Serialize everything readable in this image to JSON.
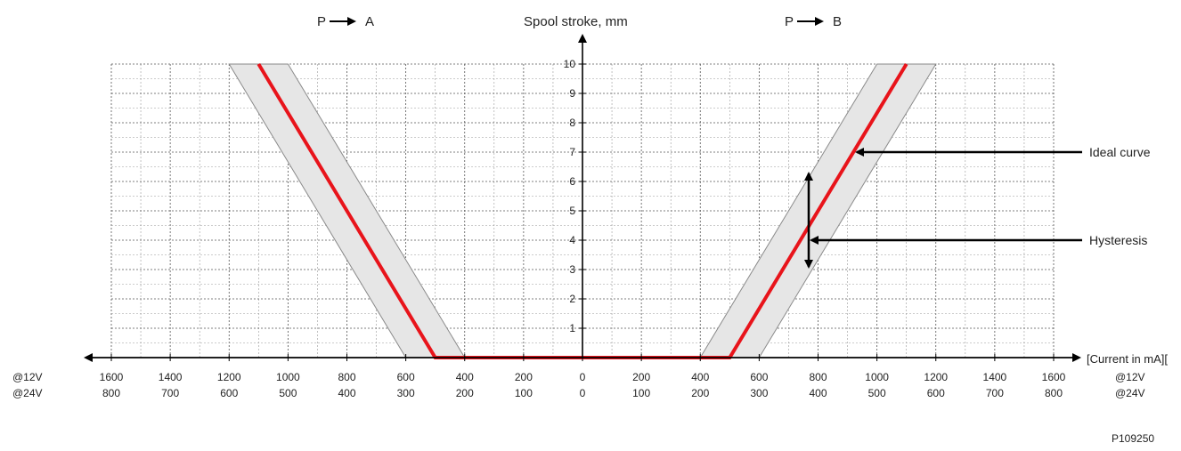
{
  "header": {
    "left_direction": "P",
    "left_target": "A",
    "right_direction": "P",
    "right_target": "B",
    "y_axis_label": "Spool stroke, mm"
  },
  "axis": {
    "x_label": "[Current in mA][",
    "row_label_12v": "@12V",
    "row_label_24v": "@24V",
    "figure_code": "P109250"
  },
  "annotations": {
    "ideal_curve": "Ideal curve",
    "hysteresis": "Hysteresis"
  },
  "chart_data": {
    "type": "line",
    "xlabel": "[Current in mA][",
    "ylabel": "Spool stroke, mm",
    "x_ticks_12v": [
      "1600",
      "1400",
      "1200",
      "1000",
      "800",
      "600",
      "400",
      "200",
      "0",
      "200",
      "400",
      "600",
      "800",
      "1000",
      "1200",
      "1400",
      "1600"
    ],
    "x_ticks_24v": [
      "800",
      "700",
      "600",
      "500",
      "400",
      "300",
      "200",
      "100",
      "0",
      "100",
      "200",
      "300",
      "400",
      "500",
      "600",
      "700",
      "800"
    ],
    "x_values_signed": [
      -1600,
      -1400,
      -1200,
      -1000,
      -800,
      -600,
      -400,
      -200,
      0,
      200,
      400,
      600,
      800,
      1000,
      1200,
      1400,
      1600
    ],
    "y_ticks": [
      1,
      2,
      3,
      4,
      5,
      6,
      7,
      8,
      9,
      10
    ],
    "xlim": [
      -1600,
      1600
    ],
    "ylim": [
      0,
      10
    ],
    "grid": true,
    "series": [
      {
        "name": "Ideal curve",
        "x": [
          -1100,
          -500,
          500,
          1100
        ],
        "y": [
          10,
          0,
          0,
          10
        ]
      }
    ],
    "hysteresis_band": {
      "name": "Hysteresis",
      "left": {
        "outer": [
          [
            -1200,
            10
          ],
          [
            -600,
            0
          ]
        ],
        "inner": [
          [
            -1000,
            10
          ],
          [
            -400,
            0
          ]
        ]
      },
      "right": {
        "outer": [
          [
            400,
            0
          ],
          [
            1000,
            10
          ]
        ],
        "inner": [
          [
            600,
            0
          ],
          [
            1200,
            10
          ]
        ]
      }
    }
  }
}
